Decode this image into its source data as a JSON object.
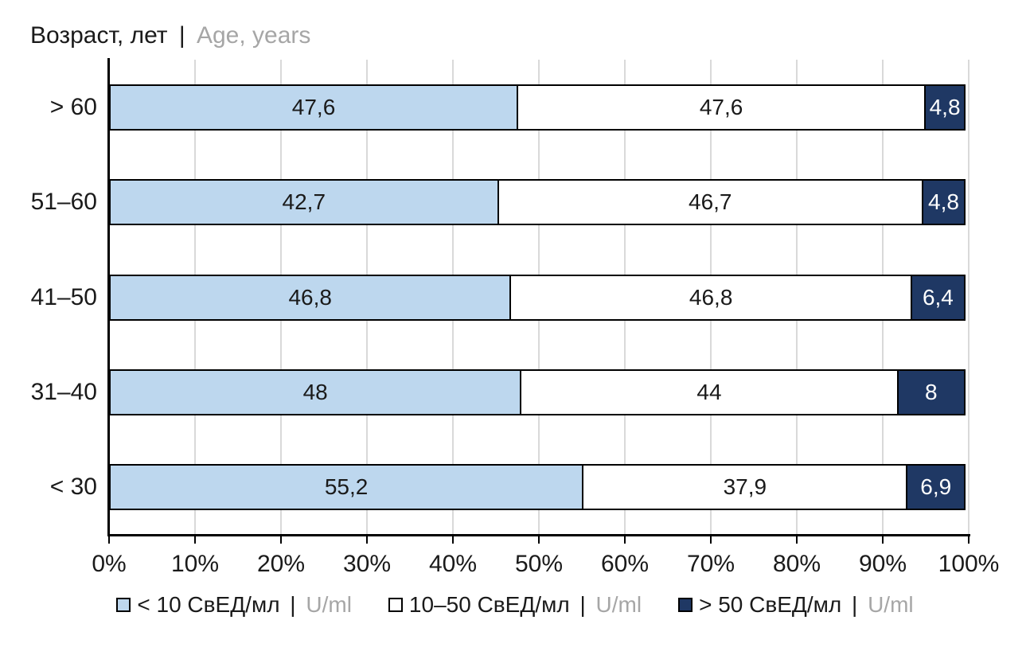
{
  "chart_data": {
    "type": "bar",
    "orientation": "horizontal",
    "stacking": "percent-normalized",
    "title": {
      "ru": "Возраст, лет",
      "separator": "|",
      "en": "Age, years"
    },
    "ylabel_meaning": "Age group, years",
    "categories": [
      "> 60",
      "51–60",
      "41–50",
      "31–40",
      "< 30"
    ],
    "series": [
      {
        "name_ru": "< 10 СвЕД/мл",
        "name_en": "U/ml",
        "separator": "|",
        "color": "#bdd7ee",
        "label_color": "#1a1a1a",
        "values": [
          47.6,
          42.7,
          46.8,
          48,
          55.2
        ],
        "labels": [
          "47,6",
          "42,7",
          "46,8",
          "48",
          "55,2"
        ]
      },
      {
        "name_ru": "10–50 СвЕД/мл",
        "name_en": "U/ml",
        "separator": "|",
        "color": "#ffffff",
        "label_color": "#1a1a1a",
        "values": [
          47.6,
          46.7,
          46.8,
          44,
          37.9
        ],
        "labels": [
          "47,6",
          "46,7",
          "46,8",
          "44",
          "37,9"
        ]
      },
      {
        "name_ru": "> 50 СвЕД/мл",
        "name_en": "U/ml",
        "separator": "|",
        "color": "#1f3864",
        "label_color": "#ffffff",
        "values": [
          4.8,
          4.8,
          6.4,
          8,
          6.9
        ],
        "labels": [
          "4,8",
          "4,8",
          "6,4",
          "8",
          "6,9"
        ]
      }
    ],
    "x_axis": {
      "min": 0,
      "max": 100,
      "tick_step": 10,
      "tick_labels": [
        "0%",
        "10%",
        "20%",
        "30%",
        "40%",
        "50%",
        "60%",
        "70%",
        "80%",
        "90%",
        "100%"
      ]
    },
    "grid": {
      "vertical": true,
      "color": "#d9d9d9"
    },
    "axis_color": "#000000",
    "bar_border_color": "#000000",
    "legend_position": "bottom",
    "text_colors": {
      "primary": "#1a1a1a",
      "secondary_gray": "#a6a6a6"
    }
  }
}
